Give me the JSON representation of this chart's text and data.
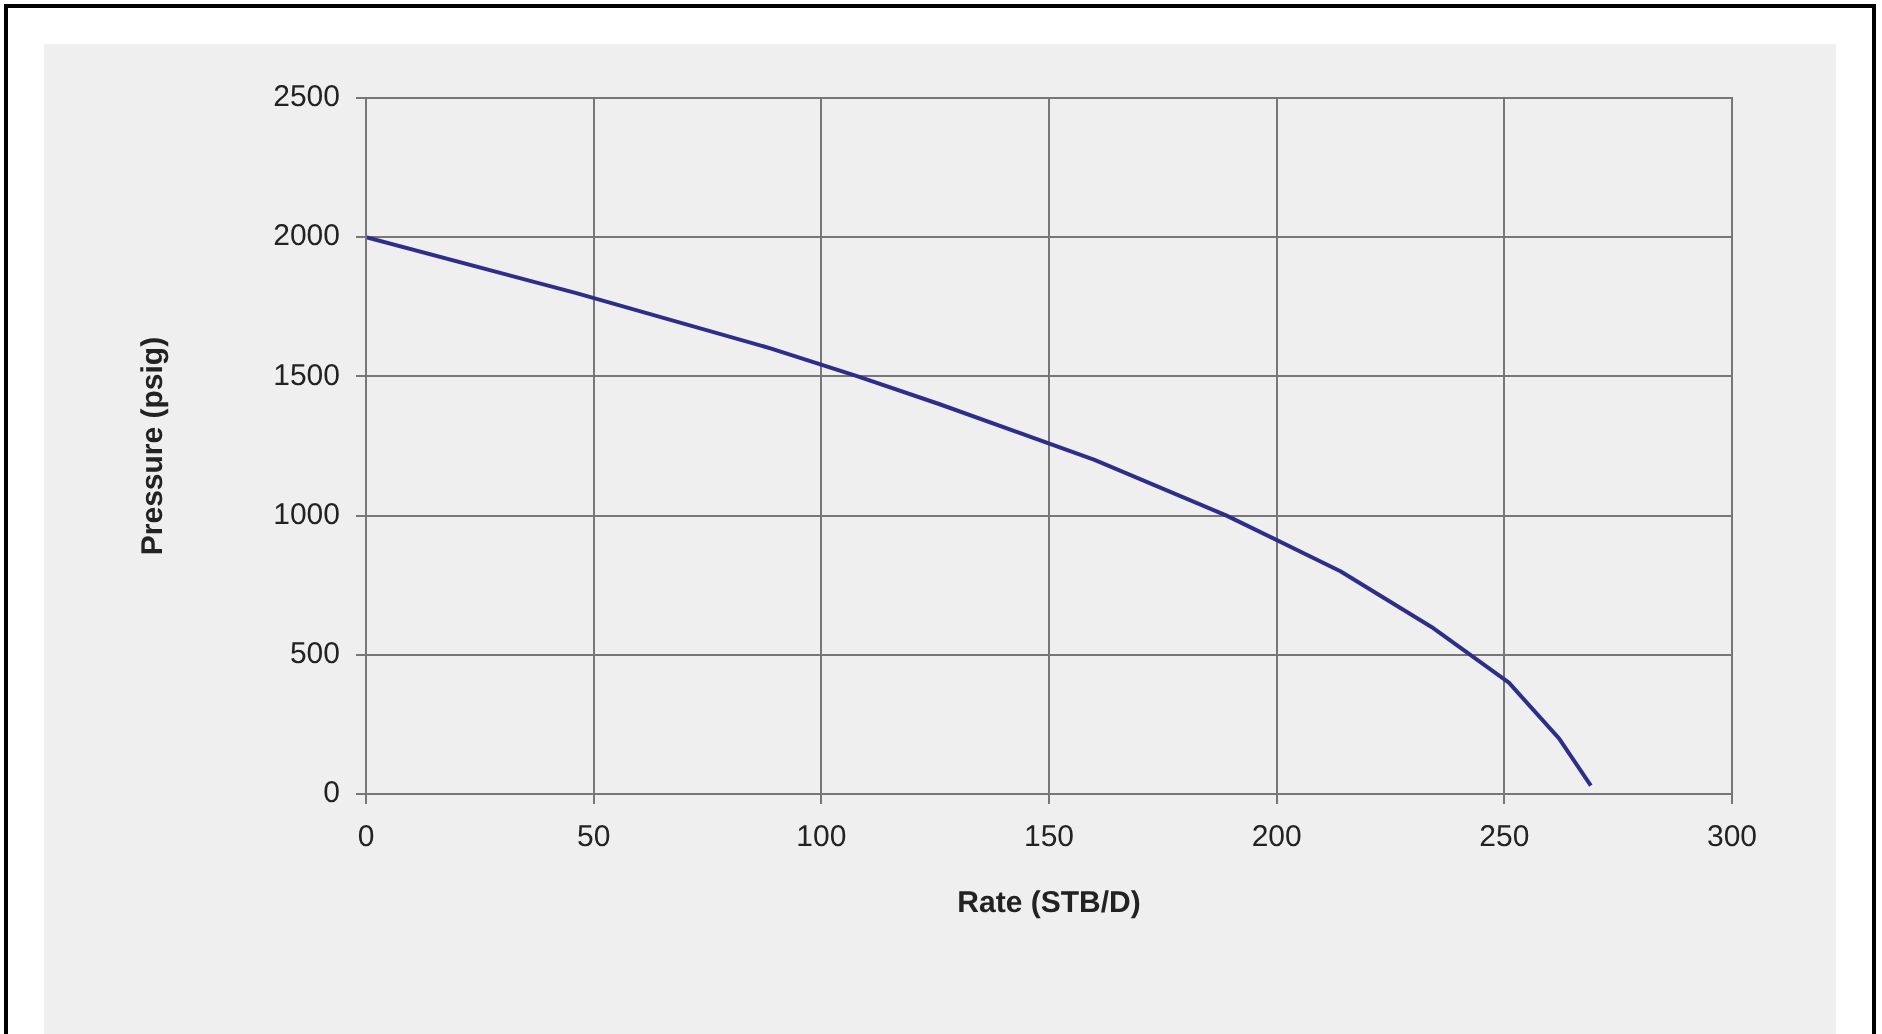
{
  "chart_data": {
    "type": "line",
    "xlabel": "Rate (STB/D)",
    "ylabel": "Pressure (psig)",
    "x": [
      0,
      46,
      89,
      108,
      126,
      160,
      189,
      214,
      234,
      251,
      262,
      269
    ],
    "series": [
      {
        "color": "#2e2e8a",
        "values": [
          2000,
          1800,
          1600,
          1500,
          1400,
          1200,
          1000,
          800,
          600,
          400,
          200,
          30
        ]
      }
    ],
    "xlim": [
      0,
      300
    ],
    "xticks": [
      0,
      50,
      100,
      150,
      200,
      250,
      300
    ],
    "ylim": [
      0,
      2500
    ],
    "yticks": [
      0,
      500,
      1000,
      1500,
      2000,
      2500
    ],
    "grid": true,
    "legend": false,
    "marker": "none",
    "line_style": "solid"
  }
}
